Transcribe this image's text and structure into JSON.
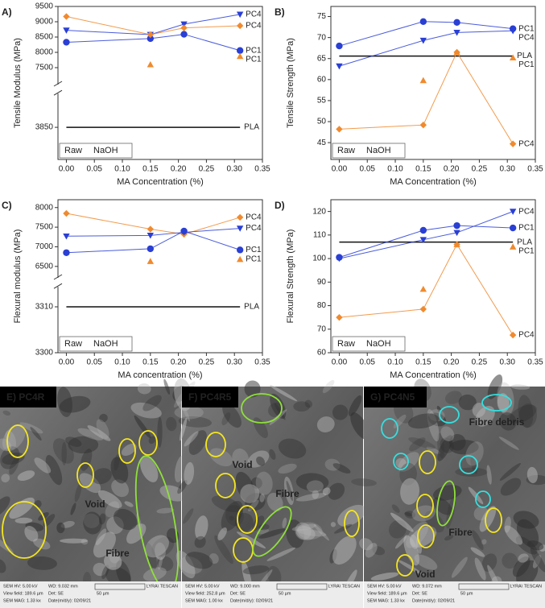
{
  "chart_data": [
    {
      "type": "line",
      "panel_label": "A)",
      "xlabel": "MA Concentration (%)",
      "ylabel": "Tensile Modulus (MPa)",
      "x": [
        0,
        0.15,
        0.21,
        0.31
      ],
      "xlim": [
        -0.015,
        0.35
      ],
      "xticks": [
        {
          "value": 0,
          "label": "0.00"
        },
        {
          "value": 0.05,
          "label": "0.05"
        },
        {
          "value": 0.1,
          "label": "0.10"
        },
        {
          "value": 0.15,
          "label": "0.15"
        },
        {
          "value": 0.2,
          "label": "0.20"
        },
        {
          "value": 0.25,
          "label": "0.25"
        },
        {
          "value": 0.3,
          "label": "0.30"
        },
        {
          "value": 0.35,
          "label": "0.35"
        }
      ],
      "ylim": [
        [
          3800,
          3900
        ],
        [
          7000,
          9500
        ]
      ],
      "yticks": [
        3850,
        7500,
        8000,
        8500,
        9000,
        9500
      ],
      "legend": [
        {
          "label": "Raw",
          "color": "#2a3fd4"
        },
        {
          "label": "NaOH",
          "color": "#f08a2e"
        }
      ],
      "reference": {
        "label": "PLA",
        "value": 3850
      },
      "series": [
        {
          "name": "PC4",
          "color": "#2a3fd4",
          "marker": "triangle-down",
          "connected": true,
          "values": [
            8720,
            8580,
            8920,
            9240
          ]
        },
        {
          "name": "PC1",
          "color": "#2a3fd4",
          "marker": "circle",
          "connected": true,
          "values": [
            8330,
            8450,
            8590,
            8060
          ]
        },
        {
          "name": "PC4",
          "color": "#f08a2e",
          "marker": "diamond",
          "connected": true,
          "values": [
            9170,
            8580,
            8800,
            8870
          ]
        },
        {
          "name": "PC1",
          "color": "#f08a2e",
          "marker": "triangle-up",
          "connected": false,
          "values": [
            null,
            7600,
            null,
            7870
          ]
        }
      ]
    },
    {
      "type": "line",
      "panel_label": "B)",
      "xlabel": "MA Concentration (%)",
      "ylabel": "Tensile Strength (MPa)",
      "x": [
        0,
        0.15,
        0.21,
        0.31
      ],
      "xlim": [
        -0.015,
        0.35
      ],
      "xticks": [
        {
          "value": 0,
          "label": "0.00"
        },
        {
          "value": 0.05,
          "label": "0.05"
        },
        {
          "value": 0.1,
          "label": "0.10"
        },
        {
          "value": 0.15,
          "label": "0.15"
        },
        {
          "value": 0.2,
          "label": "0.20"
        },
        {
          "value": 0.25,
          "label": "0.25"
        },
        {
          "value": 0.3,
          "label": "0.30"
        },
        {
          "value": 0.35,
          "label": "0.35"
        }
      ],
      "ylim": [
        41,
        77.4
      ],
      "yticks": [
        45,
        50,
        55,
        60,
        65,
        70,
        75
      ],
      "legend": [
        {
          "label": "Raw",
          "color": "#2a3fd4"
        },
        {
          "label": "NaOH",
          "color": "#f08a2e"
        }
      ],
      "reference": {
        "label": "PLA",
        "value": 65.6
      },
      "series": [
        {
          "name": "PC1",
          "color": "#2a3fd4",
          "marker": "circle",
          "connected": true,
          "values": [
            68,
            73.8,
            73.6,
            72.1
          ]
        },
        {
          "name": "PC4",
          "color": "#2a3fd4",
          "marker": "triangle-down",
          "connected": true,
          "values": [
            63.2,
            69.3,
            71.2,
            71.6
          ]
        },
        {
          "name": "PC1",
          "color": "#f08a2e",
          "marker": "triangle-up",
          "connected": false,
          "values": [
            null,
            59.8,
            66.5,
            65.2
          ]
        },
        {
          "name": "PC4",
          "color": "#f08a2e",
          "marker": "diamond",
          "connected": true,
          "values": [
            48.2,
            49.2,
            66.5,
            44.7
          ]
        }
      ]
    },
    {
      "type": "line",
      "panel_label": "C)",
      "xlabel": "MA concentration (%)",
      "ylabel": "Flexural modulus (MPa)",
      "x": [
        0,
        0.15,
        0.21,
        0.31
      ],
      "xlim": [
        -0.015,
        0.35
      ],
      "xticks": [
        {
          "value": 0,
          "label": "0.00"
        },
        {
          "value": 0.05,
          "label": "0.05"
        },
        {
          "value": 0.1,
          "label": "0.10"
        },
        {
          "value": 0.15,
          "label": "0.15"
        },
        {
          "value": 0.2,
          "label": "0.20"
        },
        {
          "value": 0.25,
          "label": "0.25"
        },
        {
          "value": 0.3,
          "label": "0.30"
        },
        {
          "value": 0.35,
          "label": "0.35"
        }
      ],
      "ylim": [
        [
          3300,
          3314
        ],
        [
          6250,
          8200
        ]
      ],
      "yticks": [
        3300,
        3310,
        6500,
        7000,
        7500,
        8000
      ],
      "legend": [
        {
          "label": "Raw",
          "color": "#2a3fd4"
        },
        {
          "label": "NaOH",
          "color": "#f08a2e"
        }
      ],
      "reference": {
        "label": "PLA",
        "value": 3310
      },
      "series": [
        {
          "name": "PC4",
          "color": "#f08a2e",
          "marker": "diamond",
          "connected": true,
          "values": [
            7850,
            7450,
            7320,
            7750
          ]
        },
        {
          "name": "PC4",
          "color": "#2a3fd4",
          "marker": "triangle-down",
          "connected": true,
          "values": [
            7270,
            7290,
            7370,
            7470
          ]
        },
        {
          "name": "PC1",
          "color": "#2a3fd4",
          "marker": "circle",
          "connected": true,
          "values": [
            6850,
            6950,
            7400,
            6920
          ]
        },
        {
          "name": "PC1",
          "color": "#f08a2e",
          "marker": "triangle-up",
          "connected": false,
          "values": [
            null,
            6630,
            null,
            6680
          ]
        }
      ]
    },
    {
      "type": "line",
      "panel_label": "D)",
      "xlabel": "MA Concentration (%)",
      "ylabel": "Flexural Strength (MPa)",
      "x": [
        0,
        0.15,
        0.21,
        0.31
      ],
      "xlim": [
        -0.015,
        0.35
      ],
      "xticks": [
        {
          "value": 0,
          "label": "0.00"
        },
        {
          "value": 0.05,
          "label": "0.05"
        },
        {
          "value": 0.1,
          "label": "0.10"
        },
        {
          "value": 0.15,
          "label": "0.15"
        },
        {
          "value": 0.2,
          "label": "0.20"
        },
        {
          "value": 0.25,
          "label": "0.25"
        },
        {
          "value": 0.3,
          "label": "0.30"
        },
        {
          "value": 0.35,
          "label": "0.35"
        }
      ],
      "ylim": [
        60,
        125
      ],
      "yticks": [
        60,
        70,
        80,
        90,
        100,
        110,
        120
      ],
      "legend": [
        {
          "label": "Raw",
          "color": "#2a3fd4"
        },
        {
          "label": "NaOH",
          "color": "#f08a2e"
        }
      ],
      "reference": {
        "label": "PLA",
        "value": 107
      },
      "series": [
        {
          "name": "PC4",
          "color": "#2a3fd4",
          "marker": "triangle-down",
          "connected": true,
          "values": [
            100,
            108,
            111,
            120
          ]
        },
        {
          "name": "PC1",
          "color": "#2a3fd4",
          "marker": "circle",
          "connected": true,
          "values": [
            100.5,
            112,
            114,
            113
          ]
        },
        {
          "name": "PC1",
          "color": "#f08a2e",
          "marker": "triangle-up",
          "connected": false,
          "values": [
            null,
            87,
            106,
            105
          ]
        },
        {
          "name": "PC4",
          "color": "#f08a2e",
          "marker": "diamond",
          "connected": true,
          "values": [
            75,
            78.5,
            106,
            67.5
          ]
        }
      ]
    }
  ],
  "micrographs": [
    {
      "label": "E) PC4R",
      "annotations": [
        {
          "text": "Void",
          "color": "#f5e61e"
        },
        {
          "text": "Fibre",
          "color": "#8fe03a"
        }
      ],
      "info": [
        "SEM HV: 5.00 kV",
        "View field: 189.6 µm",
        "SEM MAG: 1.33 kx",
        "WD: 9.032 mm",
        "Det: SE",
        "Date(m/d/y): 02/09/21"
      ],
      "scale_bar": "50 µm",
      "brand": "LYRA\\ TESCAN"
    },
    {
      "label": "F) PC4R5",
      "annotations": [
        {
          "text": "Void",
          "color": "#f5e61e"
        },
        {
          "text": "Fibre",
          "color": "#8fe03a"
        }
      ],
      "info": [
        "SEM HV: 5.00 kV",
        "View field: 252.8 µm",
        "SEM MAG: 1.00 kx",
        "WD: 9.000 mm",
        "Det: SE",
        "Date(m/d/y): 02/09/21"
      ],
      "scale_bar": "50 µm",
      "brand": "LYRA\\ TESCAN"
    },
    {
      "label": "G) PC4N5",
      "annotations": [
        {
          "text": "Fibre debris",
          "color": "#33e0e0"
        },
        {
          "text": "Fibre",
          "color": "#8fe03a"
        },
        {
          "text": "Void",
          "color": "#f5e61e"
        }
      ],
      "info": [
        "SEM HV: 5.00 kV",
        "View field: 189.6 µm",
        "SEM MAG: 1.33 kx",
        "WD: 9.072 mm",
        "Det: SE",
        "Date(m/d/y): 02/09/21"
      ],
      "scale_bar": "50 µm",
      "brand": "LYRA\\ TESCAN"
    }
  ]
}
